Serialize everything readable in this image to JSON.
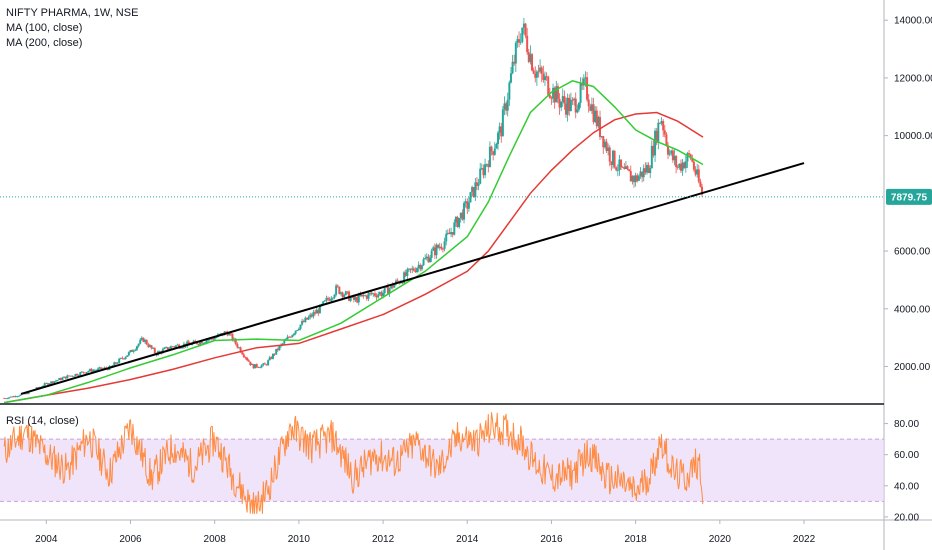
{
  "legend": {
    "main_title": "NIFTY PHARMA, 1W, NSE",
    "ma100": "MA (100, close)",
    "ma200": "MA (200, close)",
    "rsi": "RSI (14, close)"
  },
  "price_tag": "7879.75",
  "colors": {
    "up_candle": "#26a69a",
    "down_candle": "#ef5350",
    "ma100": "#33cc33",
    "ma200": "#e53935",
    "trendline": "#000000",
    "rsi_line": "#ff8c42",
    "rsi_band": "#ead9f9",
    "price_line": "#26a69a"
  },
  "chart_data": [
    {
      "type": "line",
      "title": "NIFTY PHARMA, 1W, NSE",
      "x_tick_labels": [
        "2004",
        "2006",
        "2008",
        "2010",
        "2012",
        "2014",
        "2016",
        "2018",
        "2020",
        "2022"
      ],
      "y_tick_labels": [
        "2000.00",
        "4000.00",
        "6000.00",
        "8000.00",
        "10000.00",
        "12000.00",
        "14000.00"
      ],
      "xlim": [
        2002.9,
        2023.9
      ],
      "ylim": [
        700,
        14700
      ],
      "price_points": [
        [
          2003.0,
          900
        ],
        [
          2003.5,
          1050
        ],
        [
          2004.0,
          1400
        ],
        [
          2004.5,
          1650
        ],
        [
          2005.0,
          1850
        ],
        [
          2005.5,
          1950
        ],
        [
          2006.0,
          2500
        ],
        [
          2006.3,
          2950
        ],
        [
          2006.6,
          2450
        ],
        [
          2007.0,
          2700
        ],
        [
          2007.5,
          2800
        ],
        [
          2008.0,
          3000
        ],
        [
          2008.3,
          3200
        ],
        [
          2008.6,
          2600
        ],
        [
          2008.9,
          2000
        ],
        [
          2009.2,
          2050
        ],
        [
          2009.5,
          2600
        ],
        [
          2010.0,
          3400
        ],
        [
          2010.5,
          4000
        ],
        [
          2010.9,
          4700
        ],
        [
          2011.3,
          4300
        ],
        [
          2011.7,
          4500
        ],
        [
          2012.0,
          4550
        ],
        [
          2012.5,
          5100
        ],
        [
          2013.0,
          5700
        ],
        [
          2013.5,
          6400
        ],
        [
          2014.0,
          7600
        ],
        [
          2014.4,
          8900
        ],
        [
          2014.8,
          10200
        ],
        [
          2015.1,
          12500
        ],
        [
          2015.3,
          13800
        ],
        [
          2015.6,
          12300
        ],
        [
          2015.9,
          11800
        ],
        [
          2016.2,
          11200
        ],
        [
          2016.5,
          11000
        ],
        [
          2016.8,
          11700
        ],
        [
          2017.1,
          10400
        ],
        [
          2017.4,
          9300
        ],
        [
          2017.7,
          8700
        ],
        [
          2018.0,
          8500
        ],
        [
          2018.3,
          8900
        ],
        [
          2018.6,
          10700
        ],
        [
          2018.8,
          9400
        ],
        [
          2019.0,
          8900
        ],
        [
          2019.3,
          9300
        ],
        [
          2019.6,
          7880
        ]
      ],
      "ma100_points": [
        [
          2003.0,
          750
        ],
        [
          2004.0,
          1000
        ],
        [
          2005.0,
          1450
        ],
        [
          2006.0,
          1950
        ],
        [
          2007.0,
          2400
        ],
        [
          2008.0,
          2900
        ],
        [
          2009.0,
          2950
        ],
        [
          2010.0,
          2900
        ],
        [
          2011.0,
          3500
        ],
        [
          2012.0,
          4400
        ],
        [
          2013.0,
          5300
        ],
        [
          2014.0,
          6500
        ],
        [
          2014.5,
          7700
        ],
        [
          2015.0,
          9300
        ],
        [
          2015.5,
          10800
        ],
        [
          2016.0,
          11500
        ],
        [
          2016.5,
          11900
        ],
        [
          2017.0,
          11700
        ],
        [
          2017.5,
          11000
        ],
        [
          2018.0,
          10200
        ],
        [
          2018.5,
          9800
        ],
        [
          2019.0,
          9500
        ],
        [
          2019.6,
          9000
        ]
      ],
      "ma200_points": [
        [
          2003.0,
          750
        ],
        [
          2004.0,
          1000
        ],
        [
          2005.0,
          1250
        ],
        [
          2006.0,
          1550
        ],
        [
          2007.0,
          1900
        ],
        [
          2008.0,
          2300
        ],
        [
          2009.0,
          2650
        ],
        [
          2010.0,
          2800
        ],
        [
          2011.0,
          3300
        ],
        [
          2012.0,
          3800
        ],
        [
          2013.0,
          4500
        ],
        [
          2014.0,
          5300
        ],
        [
          2014.5,
          6000
        ],
        [
          2015.0,
          7000
        ],
        [
          2015.5,
          8000
        ],
        [
          2016.0,
          8800
        ],
        [
          2016.5,
          9500
        ],
        [
          2017.0,
          10100
        ],
        [
          2017.5,
          10550
        ],
        [
          2018.0,
          10750
        ],
        [
          2018.5,
          10800
        ],
        [
          2019.0,
          10500
        ],
        [
          2019.6,
          9950
        ]
      ],
      "trendline_points": [
        [
          2003.4,
          1050
        ],
        [
          2022.0,
          9050
        ]
      ],
      "last_price": 7879.75
    },
    {
      "type": "line",
      "title": "RSI (14, close)",
      "x_tick_labels": [
        "2004",
        "2006",
        "2008",
        "2010",
        "2012",
        "2014",
        "2016",
        "2018",
        "2020",
        "2022"
      ],
      "y_tick_labels": [
        "20.00",
        "40.00",
        "60.00",
        "80.00"
      ],
      "ylim": [
        18,
        90
      ],
      "band": [
        30,
        70
      ],
      "rsi_points": [
        [
          2003.0,
          62
        ],
        [
          2003.5,
          75
        ],
        [
          2004.0,
          60
        ],
        [
          2004.5,
          50
        ],
        [
          2005.0,
          72
        ],
        [
          2005.5,
          48
        ],
        [
          2006.0,
          78
        ],
        [
          2006.5,
          45
        ],
        [
          2007.0,
          65
        ],
        [
          2007.5,
          52
        ],
        [
          2008.0,
          70
        ],
        [
          2008.4,
          48
        ],
        [
          2008.8,
          30
        ],
        [
          2009.0,
          25
        ],
        [
          2009.3,
          40
        ],
        [
          2009.8,
          78
        ],
        [
          2010.3,
          65
        ],
        [
          2010.8,
          72
        ],
        [
          2011.3,
          45
        ],
        [
          2011.8,
          60
        ],
        [
          2012.3,
          55
        ],
        [
          2012.8,
          68
        ],
        [
          2013.3,
          50
        ],
        [
          2013.8,
          72
        ],
        [
          2014.2,
          68
        ],
        [
          2014.6,
          78
        ],
        [
          2015.0,
          75
        ],
        [
          2015.3,
          68
        ],
        [
          2015.6,
          55
        ],
        [
          2016.0,
          45
        ],
        [
          2016.5,
          48
        ],
        [
          2016.9,
          62
        ],
        [
          2017.3,
          45
        ],
        [
          2017.7,
          42
        ],
        [
          2018.0,
          35
        ],
        [
          2018.4,
          50
        ],
        [
          2018.6,
          70
        ],
        [
          2018.9,
          48
        ],
        [
          2019.2,
          45
        ],
        [
          2019.5,
          57
        ],
        [
          2019.6,
          38
        ]
      ]
    }
  ]
}
